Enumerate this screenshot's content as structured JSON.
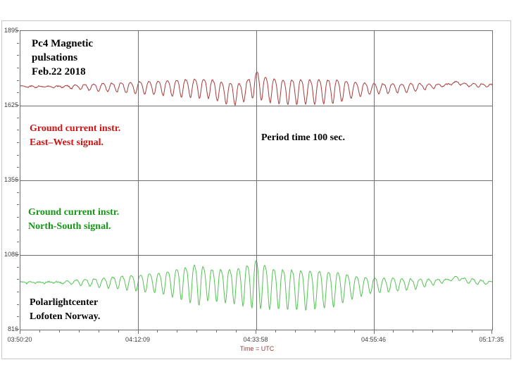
{
  "chart_data": {
    "type": "line",
    "title": "Pc4 Magnetic pulsations Feb.22 2018",
    "x_axis": {
      "label": "Time = UTC",
      "label_color": "#9a4040",
      "tick_labels": [
        "03:50:20",
        "04:12:09",
        "04:33:58",
        "04:55:46",
        "05:17:35"
      ],
      "minor_divisions": 6
    },
    "y_axis": {
      "tick_labels": [
        "1895",
        "1625",
        "1356",
        "1086",
        "816"
      ],
      "range_top": 1895,
      "range_bottom": 816,
      "minor_divisions": 6
    },
    "period_sec": 100,
    "total_seconds": 5235,
    "grid_color": "#6f6f6f",
    "series": [
      {
        "name": "Ground current instr. East–West signal.",
        "color": "#a93a3a",
        "center_value": 1694,
        "noise": 2.2,
        "seed": 7,
        "envelope": [
          [
            0,
            2.5
          ],
          [
            0.09,
            2.5
          ],
          [
            0.115,
            7
          ],
          [
            0.16,
            13
          ],
          [
            0.22,
            18
          ],
          [
            0.3,
            26
          ],
          [
            0.36,
            33
          ],
          [
            0.42,
            36
          ],
          [
            0.455,
            40
          ],
          [
            0.48,
            34
          ],
          [
            0.502,
            48
          ],
          [
            0.53,
            44
          ],
          [
            0.62,
            44
          ],
          [
            0.67,
            42
          ],
          [
            0.7,
            30
          ],
          [
            0.74,
            20
          ],
          [
            0.79,
            17
          ],
          [
            0.84,
            14
          ],
          [
            0.875,
            8
          ],
          [
            0.9,
            4
          ],
          [
            0.93,
            4
          ],
          [
            0.955,
            6
          ],
          [
            1,
            4
          ]
        ],
        "drift": [
          [
            0,
            0
          ],
          [
            0.4,
            -2
          ],
          [
            0.43,
            -18
          ],
          [
            0.465,
            -22
          ],
          [
            0.49,
            5
          ],
          [
            0.503,
            14
          ],
          [
            0.52,
            -5
          ],
          [
            0.56,
            -13
          ],
          [
            0.66,
            -12
          ],
          [
            0.73,
            -6
          ],
          [
            0.82,
            -3
          ],
          [
            0.87,
            2
          ],
          [
            0.905,
            6
          ],
          [
            0.922,
            16
          ],
          [
            0.94,
            8
          ],
          [
            0.97,
            6
          ],
          [
            1,
            4
          ]
        ]
      },
      {
        "name": "Ground current instr. North-South signal.",
        "color": "#53c353",
        "center_value": 986,
        "noise": 2.6,
        "seed": 13,
        "envelope": [
          [
            0,
            3
          ],
          [
            0.09,
            3
          ],
          [
            0.115,
            9
          ],
          [
            0.16,
            15
          ],
          [
            0.22,
            24
          ],
          [
            0.3,
            38
          ],
          [
            0.355,
            62
          ],
          [
            0.375,
            75
          ],
          [
            0.4,
            55
          ],
          [
            0.44,
            60
          ],
          [
            0.47,
            68
          ],
          [
            0.502,
            88
          ],
          [
            0.53,
            72
          ],
          [
            0.62,
            70
          ],
          [
            0.67,
            62
          ],
          [
            0.7,
            42
          ],
          [
            0.74,
            28
          ],
          [
            0.79,
            24
          ],
          [
            0.84,
            18
          ],
          [
            0.875,
            10
          ],
          [
            0.9,
            5
          ],
          [
            0.93,
            5
          ],
          [
            0.955,
            9
          ],
          [
            1,
            6
          ]
        ],
        "drift": [
          [
            0,
            0
          ],
          [
            0.35,
            4
          ],
          [
            0.4,
            0
          ],
          [
            0.465,
            -5
          ],
          [
            0.503,
            8
          ],
          [
            0.53,
            -12
          ],
          [
            0.6,
            -17
          ],
          [
            0.66,
            -15
          ],
          [
            0.73,
            -8
          ],
          [
            0.82,
            -4
          ],
          [
            0.87,
            2
          ],
          [
            0.905,
            8
          ],
          [
            0.922,
            18
          ],
          [
            0.94,
            10
          ],
          [
            0.97,
            2
          ],
          [
            1,
            0
          ]
        ]
      }
    ]
  },
  "annotations": {
    "title": {
      "lines": [
        "Pc4 Magnetic",
        "pulsations",
        "Feb.22 2018"
      ],
      "color": "#000000"
    },
    "ew": {
      "lines": [
        "Ground current instr.",
        "East–West signal."
      ],
      "color": "#cc1414"
    },
    "period": {
      "lines": [
        "Period time 100 sec."
      ],
      "color": "#000000"
    },
    "ns": {
      "lines": [
        "Ground current instr.",
        "North-South signal."
      ],
      "color": "#169616"
    },
    "site": {
      "lines": [
        "Polarlightcenter",
        "Lofoten Norway."
      ],
      "color": "#000000"
    }
  }
}
